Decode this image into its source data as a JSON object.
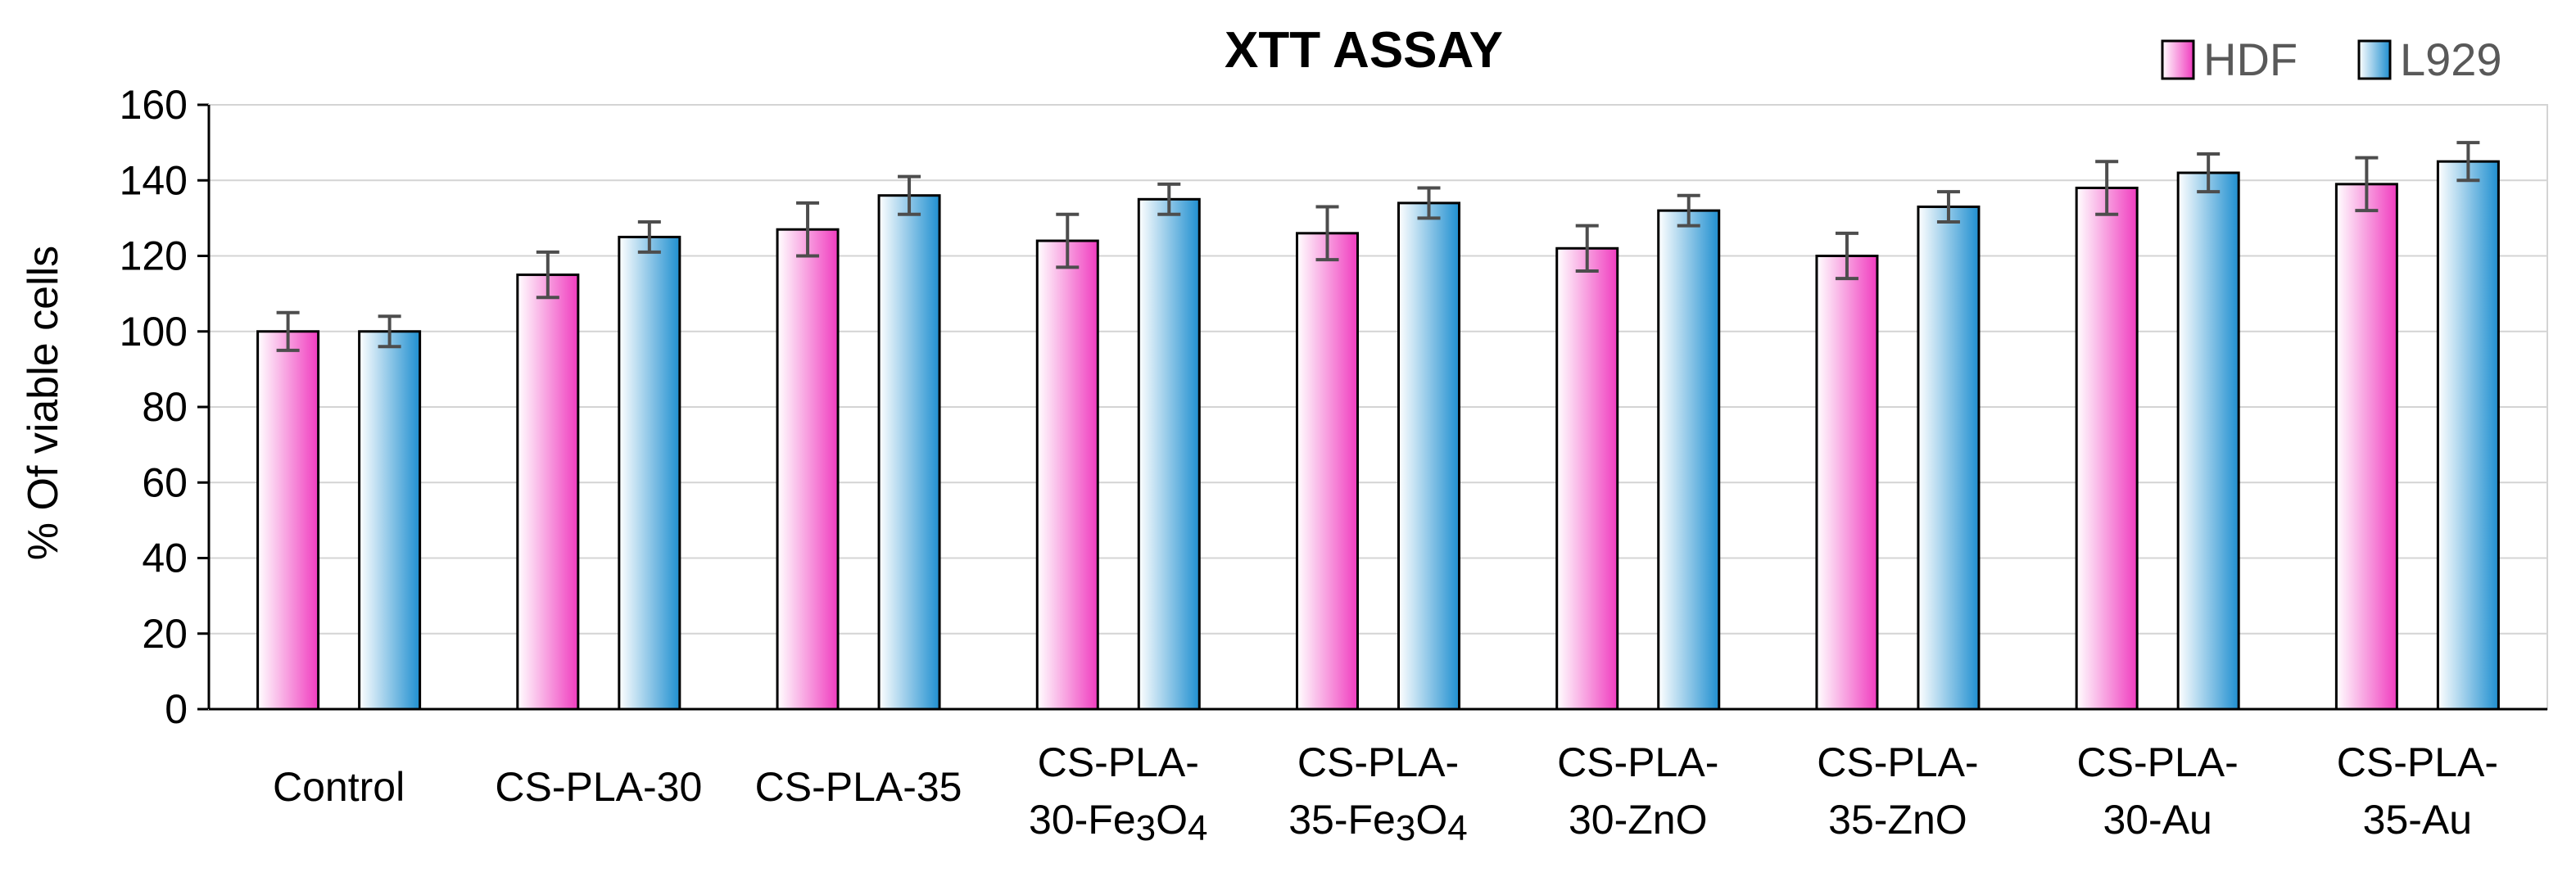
{
  "chart_data": {
    "type": "bar",
    "title": "XTT ASSAY",
    "xlabel": "",
    "ylabel": "% Of viable cells",
    "ylim": [
      0,
      160
    ],
    "yticks": [
      0,
      20,
      40,
      60,
      80,
      100,
      120,
      140,
      160
    ],
    "grid": true,
    "legend_position": "top-right",
    "categories": [
      [
        "Control"
      ],
      [
        "CS-PLA-30"
      ],
      [
        "CS-PLA-35"
      ],
      [
        "CS-PLA-",
        "30-Fe3O4"
      ],
      [
        "CS-PLA-",
        "35-Fe3O4"
      ],
      [
        "CS-PLA-",
        "30-ZnO"
      ],
      [
        "CS-PLA-",
        "35-ZnO"
      ],
      [
        "CS-PLA-",
        "30-Au"
      ],
      [
        "CS-PLA-",
        "35-Au"
      ]
    ],
    "series": [
      {
        "name": "HDF",
        "color_light": "#ffffff",
        "color_dark": "#f03cbf",
        "values": [
          100,
          115,
          127,
          124,
          126,
          122,
          120,
          138,
          139
        ],
        "errors": [
          5,
          6,
          7,
          7,
          7,
          6,
          6,
          7,
          7
        ]
      },
      {
        "name": "L929",
        "color_light": "#ffffff",
        "color_dark": "#1f8fd0",
        "values": [
          100,
          125,
          136,
          135,
          134,
          132,
          133,
          142,
          145
        ],
        "errors": [
          4,
          4,
          5,
          4,
          4,
          4,
          4,
          5,
          5
        ]
      }
    ]
  }
}
